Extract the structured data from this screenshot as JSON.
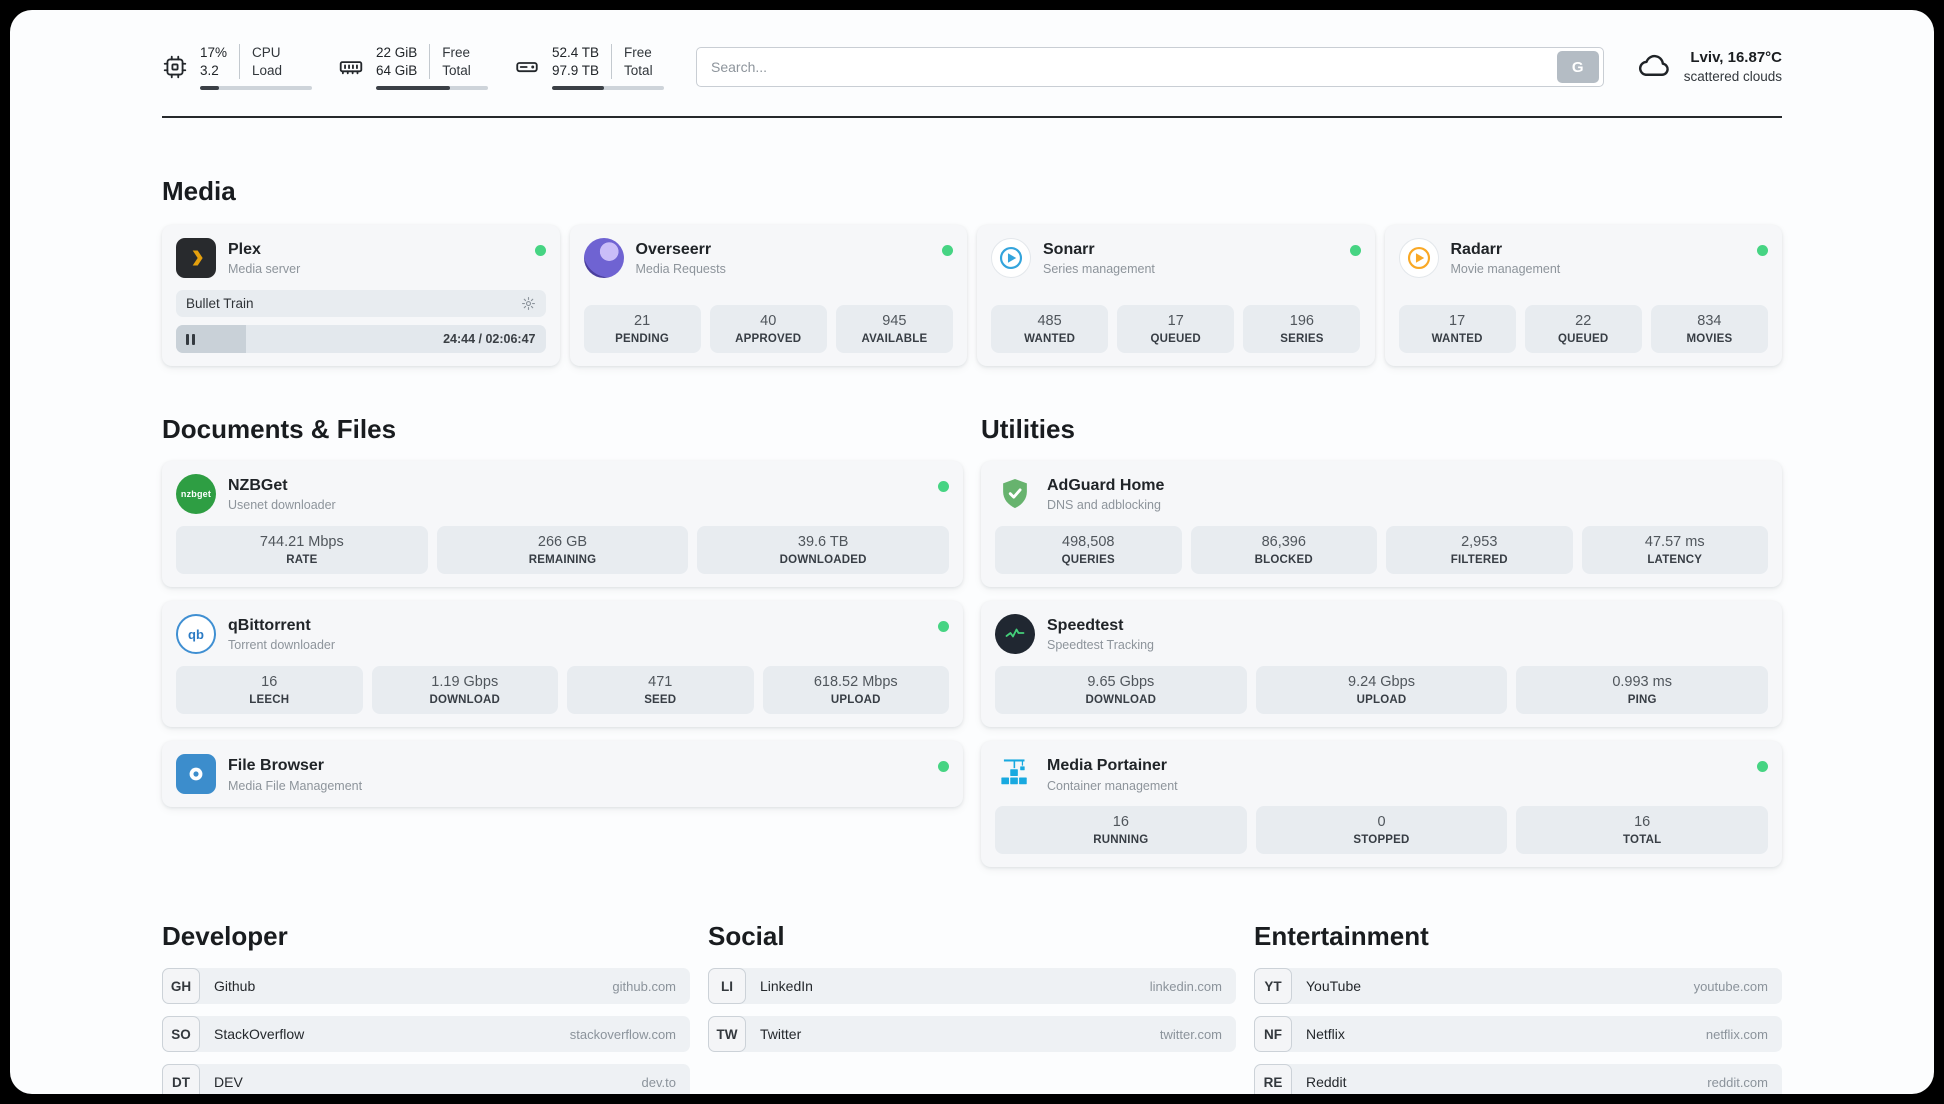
{
  "colors": {
    "status_online": "#46d483",
    "progress_fill": "#3b4046",
    "card_background": "#f6f7f9",
    "tile_background": "#e8ecf0",
    "plex_accent": "#e5a00d",
    "sonarr_accent": "#33a4dc",
    "radarr_accent": "#f9a825",
    "adguard_accent": "#67b36e",
    "speedtest_accent": "#44d07a",
    "portainer_accent": "#18a9e0"
  },
  "header": {
    "cpu": {
      "value": "17%",
      "secondary": "3.2",
      "label_line1": "CPU",
      "label_line2": "Load",
      "progress_pct": 17
    },
    "ram": {
      "value": "22 GiB",
      "secondary": "64 GiB",
      "label_line1": "Free",
      "label_line2": "Total",
      "progress_pct": 66
    },
    "disk": {
      "value": "52.4 TB",
      "secondary": "97.9 TB",
      "label_line1": "Free",
      "label_line2": "Total",
      "progress_pct": 46
    },
    "search": {
      "placeholder": "Search...",
      "engine_button_label": "G"
    },
    "weather": {
      "location": "Lviv, 16.87°C",
      "condition": "scattered clouds"
    }
  },
  "sections": {
    "media": {
      "title": "Media"
    },
    "documents": {
      "title": "Documents & Files"
    },
    "utilities": {
      "title": "Utilities"
    },
    "developer": {
      "title": "Developer"
    },
    "social": {
      "title": "Social"
    },
    "entertainment": {
      "title": "Entertainment"
    }
  },
  "apps": {
    "plex": {
      "name": "Plex",
      "subtitle": "Media server",
      "now_playing": "Bullet Train",
      "time": "24:44 / 02:06:47",
      "progress_pct": 19
    },
    "overseerr": {
      "name": "Overseerr",
      "subtitle": "Media Requests",
      "stats": [
        {
          "value": "21",
          "label": "PENDING"
        },
        {
          "value": "40",
          "label": "APPROVED"
        },
        {
          "value": "945",
          "label": "AVAILABLE"
        }
      ]
    },
    "sonarr": {
      "name": "Sonarr",
      "subtitle": "Series management",
      "stats": [
        {
          "value": "485",
          "label": "WANTED"
        },
        {
          "value": "17",
          "label": "QUEUED"
        },
        {
          "value": "196",
          "label": "SERIES"
        }
      ]
    },
    "radarr": {
      "name": "Radarr",
      "subtitle": "Movie management",
      "stats": [
        {
          "value": "17",
          "label": "WANTED"
        },
        {
          "value": "22",
          "label": "QUEUED"
        },
        {
          "value": "834",
          "label": "MOVIES"
        }
      ]
    },
    "nzbget": {
      "name": "NZBGet",
      "subtitle": "Usenet downloader",
      "icon_text": "nzbget",
      "stats": [
        {
          "value": "744.21 Mbps",
          "label": "RATE"
        },
        {
          "value": "266 GB",
          "label": "REMAINING"
        },
        {
          "value": "39.6 TB",
          "label": "DOWNLOADED"
        }
      ]
    },
    "qbittorrent": {
      "name": "qBittorrent",
      "subtitle": "Torrent downloader",
      "icon_text": "qb",
      "stats": [
        {
          "value": "16",
          "label": "LEECH"
        },
        {
          "value": "1.19 Gbps",
          "label": "DOWNLOAD"
        },
        {
          "value": "471",
          "label": "SEED"
        },
        {
          "value": "618.52 Mbps",
          "label": "UPLOAD"
        }
      ]
    },
    "filebrowser": {
      "name": "File Browser",
      "subtitle": "Media File Management"
    },
    "adguard": {
      "name": "AdGuard Home",
      "subtitle": "DNS and adblocking",
      "stats": [
        {
          "value": "498,508",
          "label": "QUERIES"
        },
        {
          "value": "86,396",
          "label": "BLOCKED"
        },
        {
          "value": "2,953",
          "label": "FILTERED"
        },
        {
          "value": "47.57 ms",
          "label": "LATENCY"
        }
      ]
    },
    "speedtest": {
      "name": "Speedtest",
      "subtitle": "Speedtest Tracking",
      "stats": [
        {
          "value": "9.65 Gbps",
          "label": "DOWNLOAD"
        },
        {
          "value": "9.24 Gbps",
          "label": "UPLOAD"
        },
        {
          "value": "0.993 ms",
          "label": "PING"
        }
      ]
    },
    "portainer": {
      "name": "Media Portainer",
      "subtitle": "Container management",
      "stats": [
        {
          "value": "16",
          "label": "RUNNING"
        },
        {
          "value": "0",
          "label": "STOPPED"
        },
        {
          "value": "16",
          "label": "TOTAL"
        }
      ]
    }
  },
  "links": {
    "developer": [
      {
        "abbr": "GH",
        "name": "Github",
        "url": "github.com"
      },
      {
        "abbr": "SO",
        "name": "StackOverflow",
        "url": "stackoverflow.com"
      },
      {
        "abbr": "DT",
        "name": "DEV",
        "url": "dev.to"
      }
    ],
    "social": [
      {
        "abbr": "LI",
        "name": "LinkedIn",
        "url": "linkedin.com"
      },
      {
        "abbr": "TW",
        "name": "Twitter",
        "url": "twitter.com"
      }
    ],
    "entertainment": [
      {
        "abbr": "YT",
        "name": "YouTube",
        "url": "youtube.com"
      },
      {
        "abbr": "NF",
        "name": "Netflix",
        "url": "netflix.com"
      },
      {
        "abbr": "RE",
        "name": "Reddit",
        "url": "reddit.com"
      }
    ]
  }
}
